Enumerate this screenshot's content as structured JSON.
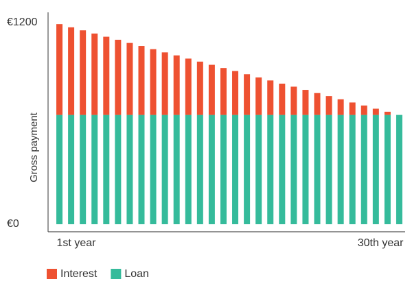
{
  "chart_data": {
    "type": "stacked-bar",
    "y_label": "Gross payment",
    "categories": [
      "1st year",
      null,
      null,
      null,
      null,
      null,
      null,
      null,
      null,
      null,
      null,
      null,
      null,
      null,
      null,
      null,
      null,
      null,
      null,
      null,
      null,
      null,
      null,
      null,
      null,
      null,
      null,
      null,
      null,
      "30th year"
    ],
    "series": [
      {
        "name": "Loan",
        "color": "#35bb9b",
        "values": [
          650,
          650,
          650,
          650,
          650,
          650,
          650,
          650,
          650,
          650,
          650,
          650,
          650,
          650,
          650,
          650,
          650,
          650,
          650,
          650,
          650,
          650,
          650,
          650,
          650,
          650,
          650,
          650,
          650,
          650
        ]
      },
      {
        "name": "Interest",
        "color": "#ee5131",
        "values": [
          540,
          521,
          503,
          484,
          465,
          447,
          428,
          410,
          391,
          372,
          354,
          335,
          317,
          298,
          279,
          261,
          242,
          223,
          205,
          186,
          168,
          149,
          130,
          112,
          93,
          74,
          56,
          37,
          19,
          0
        ]
      }
    ],
    "ylim": [
      0,
      1260
    ],
    "yticks": [
      {
        "value": 0,
        "label": "€0"
      },
      {
        "value": 1200,
        "label": "€1200"
      }
    ]
  }
}
